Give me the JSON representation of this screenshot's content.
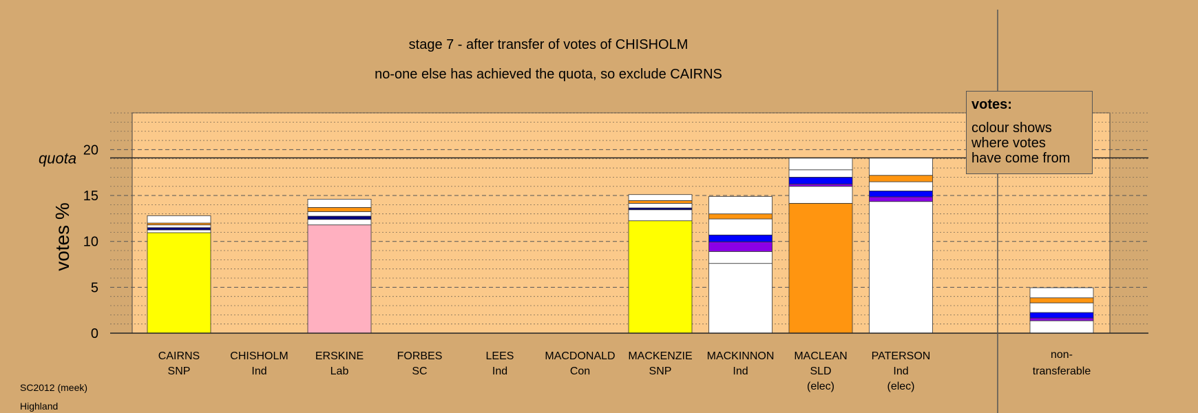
{
  "chart_data": {
    "type": "bar",
    "stacked": true,
    "title": "stage 7 - after transfer of votes of CHISHOLM",
    "subtitle": "no-one else has achieved the quota, so exclude CAIRNS",
    "ylabel": "votes %",
    "ylim": [
      0,
      24
    ],
    "yticks": [
      0,
      5,
      10,
      15,
      20
    ],
    "quota": {
      "label": "quota",
      "value": 19.1
    },
    "grid": true,
    "legend": {
      "position": "top-right",
      "title": "votes:",
      "lines": [
        "colour shows",
        "where votes",
        "have come from"
      ]
    },
    "colors": {
      "background": "#d4a971",
      "plot_area": "#fbc98a",
      "SNP": "#ffff00",
      "Lab": "#ffb0c0",
      "Ind": "#ffffff",
      "SLD": "#ff9510",
      "blue": "#0000ff",
      "purple": "#8b00e6",
      "navy": "#000080"
    },
    "categories": [
      {
        "name": "CAIRNS",
        "party": "SNP",
        "status": "",
        "segments": [
          {
            "value": 10.95,
            "color": "#ffff00"
          },
          {
            "value": 0.3,
            "color": "#ffffff"
          },
          {
            "value": 0.25,
            "color": "#000080"
          },
          {
            "value": 0.3,
            "color": "#ffffff"
          },
          {
            "value": 0.2,
            "color": "#ff9510"
          },
          {
            "value": 0.8,
            "color": "#ffffff"
          }
        ]
      },
      {
        "name": "CHISHOLM",
        "party": "Ind",
        "status": "",
        "segments": []
      },
      {
        "name": "ERSKINE",
        "party": "Lab",
        "status": "",
        "segments": [
          {
            "value": 11.8,
            "color": "#ffb0c0"
          },
          {
            "value": 0.6,
            "color": "#ffffff"
          },
          {
            "value": 0.35,
            "color": "#000080"
          },
          {
            "value": 0.5,
            "color": "#ffffff"
          },
          {
            "value": 0.45,
            "color": "#ff9510"
          },
          {
            "value": 0.9,
            "color": "#ffffff"
          }
        ]
      },
      {
        "name": "FORBES",
        "party": "SC",
        "status": "",
        "segments": []
      },
      {
        "name": "LEES",
        "party": "Ind",
        "status": "",
        "segments": []
      },
      {
        "name": "MACDONALD",
        "party": "Con",
        "status": "",
        "segments": []
      },
      {
        "name": "MACKENZIE",
        "party": "SNP",
        "status": "",
        "segments": [
          {
            "value": 12.25,
            "color": "#ffff00"
          },
          {
            "value": 1.2,
            "color": "#ffffff"
          },
          {
            "value": 0.2,
            "color": "#000080"
          },
          {
            "value": 0.5,
            "color": "#ffffff"
          },
          {
            "value": 0.3,
            "color": "#ff9510"
          },
          {
            "value": 0.65,
            "color": "#ffffff"
          }
        ]
      },
      {
        "name": "MACKINNON",
        "party": "Ind",
        "status": "",
        "segments": [
          {
            "value": 7.6,
            "color": "#ffffff"
          },
          {
            "value": 1.3,
            "color": "#ffffff"
          },
          {
            "value": 1.05,
            "color": "#8b00e6"
          },
          {
            "value": 0.75,
            "color": "#0000ff"
          },
          {
            "value": 1.75,
            "color": "#ffffff"
          },
          {
            "value": 0.55,
            "color": "#ff9510"
          },
          {
            "value": 1.9,
            "color": "#ffffff"
          }
        ]
      },
      {
        "name": "MACLEAN",
        "party": "SLD",
        "status": "(elec)",
        "segments": [
          {
            "value": 14.15,
            "color": "#ff9510"
          },
          {
            "value": 1.85,
            "color": "#ffffff"
          },
          {
            "value": 0.25,
            "color": "#8b00e6"
          },
          {
            "value": 0.75,
            "color": "#0000ff"
          },
          {
            "value": 0.8,
            "color": "#ffffff"
          },
          {
            "value": 1.3,
            "color": "#ffffff"
          }
        ]
      },
      {
        "name": "PATERSON",
        "party": "Ind",
        "status": "(elec)",
        "segments": [
          {
            "value": 14.35,
            "color": "#ffffff"
          },
          {
            "value": 0.5,
            "color": "#8b00e6"
          },
          {
            "value": 0.65,
            "color": "#0000ff"
          },
          {
            "value": 1.0,
            "color": "#ffffff"
          },
          {
            "value": 0.7,
            "color": "#ff9510"
          },
          {
            "value": 1.9,
            "color": "#ffffff"
          }
        ]
      }
    ],
    "nontransferable": {
      "label_line1": "non-",
      "label_line2": "transferable",
      "segments": [
        {
          "value": 1.35,
          "color": "#ffffff"
        },
        {
          "value": 0.3,
          "color": "#8b00e6"
        },
        {
          "value": 0.6,
          "color": "#0000ff"
        },
        {
          "value": 1.05,
          "color": "#ffffff"
        },
        {
          "value": 0.55,
          "color": "#ff9510"
        },
        {
          "value": 1.1,
          "color": "#ffffff"
        }
      ]
    }
  },
  "footer": {
    "line1": "SC2012 (meek)",
    "line2": "Highland"
  }
}
